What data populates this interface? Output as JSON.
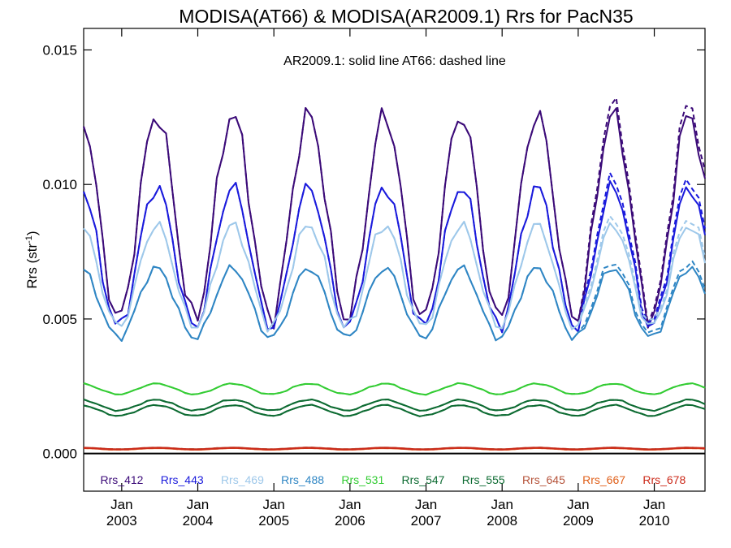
{
  "chart_data": {
    "type": "line",
    "title": "MODISA(AT66) & MODISA(AR2009.1)  Rrs for PacN35",
    "annotation": "AR2009.1: solid line   AT66: dashed line",
    "ylabel": "Rrs (str",
    "ylabel_sup": "-1",
    "ylabel_close": ")",
    "ylim": [
      -0.0014,
      0.0158
    ],
    "y_ticks": [
      "0.000",
      "0.005",
      "0.010",
      "0.015"
    ],
    "y_tick_values": [
      0,
      0.005,
      0.01,
      0.015
    ],
    "xlim": [
      "2002-07",
      "2010-09"
    ],
    "x_ticks": [
      {
        "month": "Jan",
        "year": "2003",
        "x": "2003-01"
      },
      {
        "month": "Jan",
        "year": "2004",
        "x": "2004-01"
      },
      {
        "month": "Jan",
        "year": "2005",
        "x": "2005-01"
      },
      {
        "month": "Jan",
        "year": "2006",
        "x": "2006-01"
      },
      {
        "month": "Jan",
        "year": "2007",
        "x": "2007-01"
      },
      {
        "month": "Jan",
        "year": "2008",
        "x": "2008-01"
      },
      {
        "month": "Jan",
        "year": "2009",
        "x": "2009-01"
      },
      {
        "month": "Jan",
        "year": "2010",
        "x": "2010-01"
      }
    ],
    "zero_line": 0,
    "legend_position": "bottom-inside",
    "series": [
      {
        "name": "Rrs_412",
        "color": "#3b0a78",
        "amplitude": 0.0038,
        "baseline": 0.0088
      },
      {
        "name": "Rrs_443",
        "color": "#1a1adc",
        "amplitude": 0.0026,
        "baseline": 0.0073
      },
      {
        "name": "Rrs_469",
        "color": "#9ec8ea",
        "amplitude": 0.0019,
        "baseline": 0.0066
      },
      {
        "name": "Rrs_488",
        "color": "#2f86c4",
        "amplitude": 0.0013,
        "baseline": 0.0056
      },
      {
        "name": "Rrs_531",
        "color": "#33cc33",
        "amplitude": 0.0002,
        "baseline": 0.0024
      },
      {
        "name": "Rrs_547",
        "color": "#0d6b32",
        "amplitude": 0.0002,
        "baseline": 0.0018
      },
      {
        "name": "Rrs_555",
        "color": "#0d6b32",
        "amplitude": 0.0002,
        "baseline": 0.0016
      },
      {
        "name": "Rrs_645",
        "color": "#b5533a",
        "amplitude": 3e-05,
        "baseline": 0.00019
      },
      {
        "name": "Rrs_667",
        "color": "#e0601a",
        "amplitude": 3e-05,
        "baseline": 0.00017
      },
      {
        "name": "Rrs_678",
        "color": "#cc2a1a",
        "amplitude": 3e-05,
        "baseline": 0.00018
      }
    ]
  }
}
